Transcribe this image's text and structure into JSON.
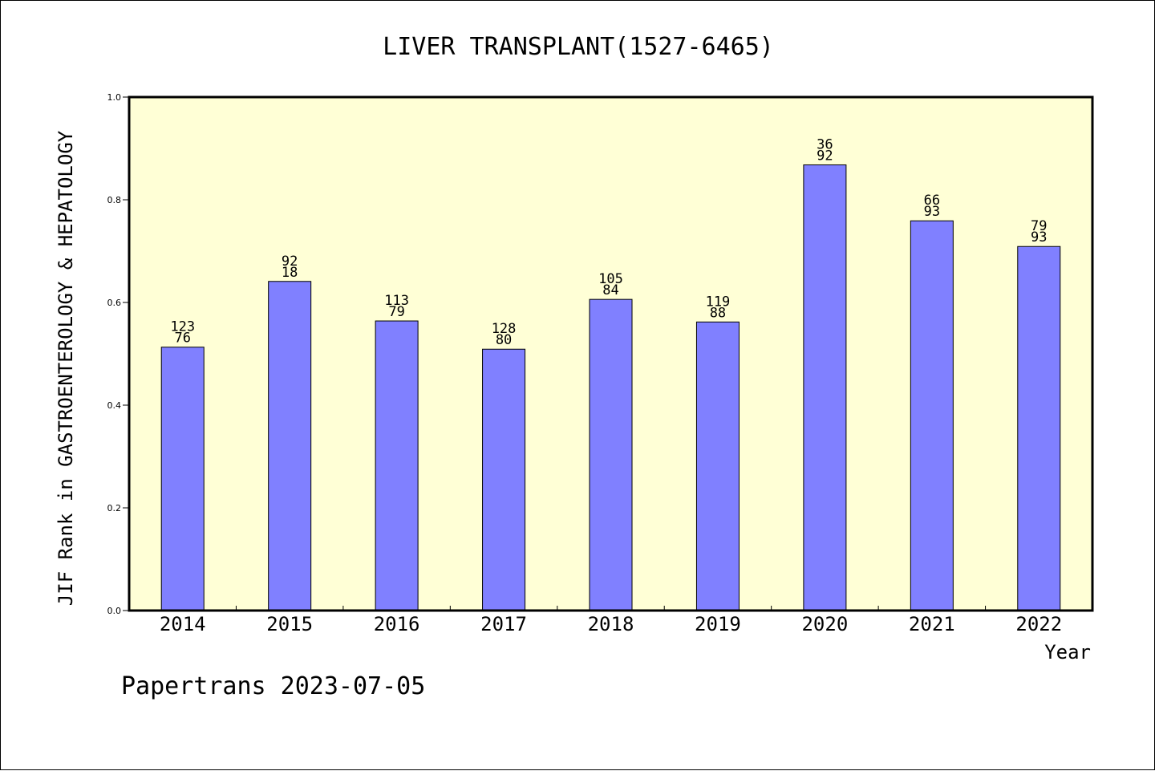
{
  "chart_data": {
    "type": "bar",
    "title": "LIVER TRANSPLANT(1527-6465)",
    "xlabel": "Year",
    "ylabel": "JIF Rank in GASTROENTEROLOGY & HEPATOLOGY",
    "ylim": [
      0,
      1.0
    ],
    "yticks": [
      "0.0",
      "0.2",
      "0.4",
      "0.6",
      "0.8",
      "1.0"
    ],
    "categories": [
      "2014",
      "2015",
      "2016",
      "2017",
      "2018",
      "2019",
      "2020",
      "2021",
      "2022"
    ],
    "values": [
      0.513,
      0.641,
      0.564,
      0.509,
      0.606,
      0.562,
      0.868,
      0.759,
      0.709
    ],
    "labels_top": [
      "123",
      "92",
      "113",
      "128",
      "105",
      "119",
      "36",
      "66",
      "79"
    ],
    "labels_bottom": [
      "76",
      "18",
      "79",
      "80",
      "84",
      "88",
      "92",
      "93",
      "93"
    ],
    "bar_color": "#8080ff",
    "plot_background": "#ffffd6",
    "grid": false,
    "footer": "Papertrans 2023-07-05"
  }
}
